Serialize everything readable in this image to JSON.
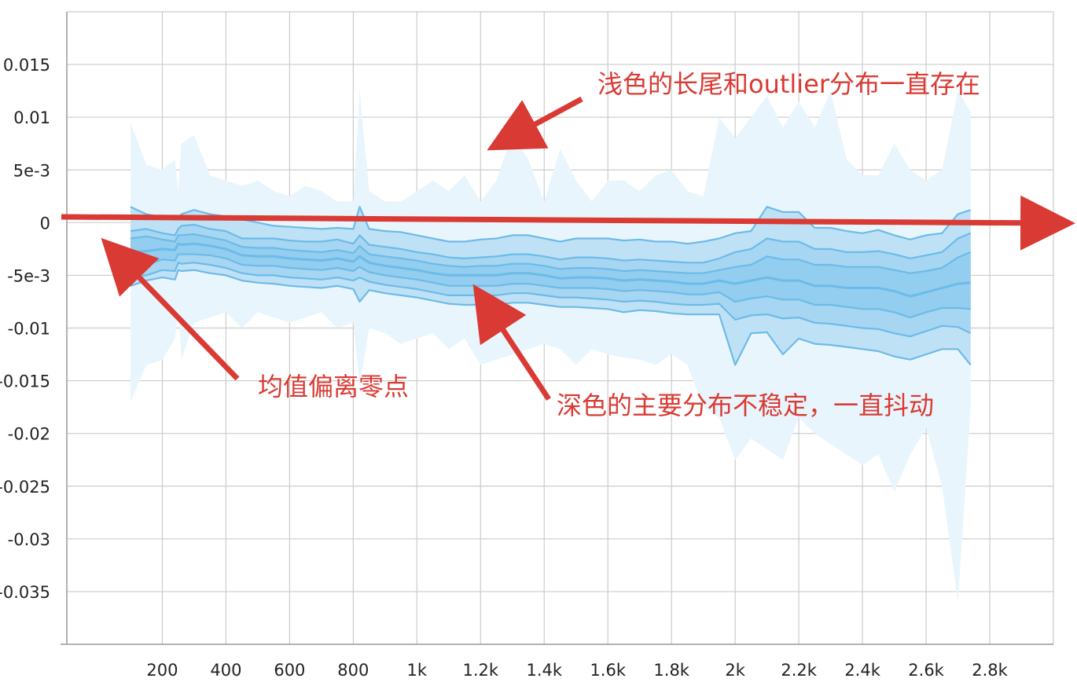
{
  "chart_data": {
    "type": "area",
    "xlim": [
      -100,
      3000
    ],
    "ylim": [
      -0.04,
      0.02
    ],
    "x_ticks": [
      {
        "value": 200,
        "label": "200"
      },
      {
        "value": 400,
        "label": "400"
      },
      {
        "value": 600,
        "label": "600"
      },
      {
        "value": 800,
        "label": "800"
      },
      {
        "value": 1000,
        "label": "1k"
      },
      {
        "value": 1200,
        "label": "1.2k"
      },
      {
        "value": 1400,
        "label": "1.4k"
      },
      {
        "value": 1600,
        "label": "1.6k"
      },
      {
        "value": 1800,
        "label": "1.8k"
      },
      {
        "value": 2000,
        "label": "2k"
      },
      {
        "value": 2200,
        "label": "2.2k"
      },
      {
        "value": 2400,
        "label": "2.4k"
      },
      {
        "value": 2600,
        "label": "2.6k"
      },
      {
        "value": 2800,
        "label": "2.8k"
      }
    ],
    "y_ticks": [
      {
        "value": 0.015,
        "label": "0.015"
      },
      {
        "value": 0.01,
        "label": "0.01"
      },
      {
        "value": 0.005,
        "label": "5e-3"
      },
      {
        "value": 0,
        "label": "0"
      },
      {
        "value": -0.005,
        "label": "-5e-3"
      },
      {
        "value": -0.01,
        "label": "-0.01"
      },
      {
        "value": -0.015,
        "label": "-0.015"
      },
      {
        "value": -0.02,
        "label": "-0.02"
      },
      {
        "value": -0.025,
        "label": "-0.025"
      },
      {
        "value": -0.03,
        "label": "-0.03"
      },
      {
        "value": -0.035,
        "label": "-0.035"
      }
    ],
    "grid": true,
    "x": [
      100,
      150,
      200,
      240,
      250,
      260,
      300,
      350,
      400,
      450,
      500,
      550,
      600,
      650,
      700,
      750,
      800,
      820,
      850,
      900,
      950,
      1000,
      1050,
      1100,
      1150,
      1200,
      1250,
      1300,
      1350,
      1400,
      1450,
      1500,
      1550,
      1600,
      1650,
      1700,
      1750,
      1800,
      1850,
      1900,
      1950,
      2000,
      2050,
      2100,
      2150,
      2200,
      2250,
      2300,
      2350,
      2400,
      2450,
      2500,
      2550,
      2600,
      2650,
      2700,
      2740
    ],
    "percentile_bands": {
      "p100": [
        0.0095,
        0.0055,
        0.005,
        0.006,
        0.003,
        0.0075,
        0.0083,
        0.0045,
        0.004,
        0.0035,
        0.004,
        0.003,
        0.0025,
        0.0035,
        0.003,
        0.002,
        0.002,
        0.0125,
        0.003,
        0.002,
        0.002,
        0.003,
        0.004,
        0.003,
        0.0045,
        0.002,
        0.004,
        0.0085,
        0.006,
        0.002,
        0.007,
        0.004,
        0.002,
        0.004,
        0.004,
        0.003,
        0.0045,
        0.005,
        0.003,
        0.0025,
        0.01,
        0.008,
        0.01,
        0.012,
        0.009,
        0.0115,
        0.009,
        0.0125,
        0.006,
        0.0045,
        0.0045,
        0.0075,
        0.005,
        0.004,
        0.005,
        0.0125,
        0.0105
      ],
      "p93": [
        0.0015,
        0.0008,
        0.0005,
        0.0003,
        0.0003,
        0.0008,
        0.0012,
        0.0008,
        0.0006,
        0.0003,
        0.0,
        -0.0003,
        -0.0004,
        -0.0005,
        -0.0006,
        -0.0005,
        -0.0006,
        0.0015,
        -0.0006,
        -0.0008,
        -0.0009,
        -0.0012,
        -0.0015,
        -0.0018,
        -0.0018,
        -0.0016,
        -0.0015,
        -0.0012,
        -0.0012,
        -0.0015,
        -0.0018,
        -0.0015,
        -0.0015,
        -0.0015,
        -0.0017,
        -0.0016,
        -0.0018,
        -0.0018,
        -0.002,
        -0.0018,
        -0.0015,
        -0.001,
        -0.0008,
        0.0015,
        0.001,
        0.001,
        -0.0005,
        -0.0005,
        -0.0008,
        -0.001,
        -0.0007,
        -0.0012,
        -0.0016,
        -0.0012,
        -0.001,
        0.0008,
        0.0012
      ],
      "p84": [
        -0.0008,
        -0.0006,
        -0.001,
        -0.0012,
        -0.0006,
        -0.0003,
        -0.0002,
        -0.0006,
        -0.0008,
        -0.0015,
        -0.0015,
        -0.0015,
        -0.0017,
        -0.0018,
        -0.0018,
        -0.0016,
        -0.002,
        -0.0012,
        -0.0021,
        -0.0023,
        -0.0025,
        -0.0028,
        -0.003,
        -0.0033,
        -0.0034,
        -0.0033,
        -0.0032,
        -0.003,
        -0.003,
        -0.0032,
        -0.0035,
        -0.0033,
        -0.0033,
        -0.0034,
        -0.0036,
        -0.0035,
        -0.0036,
        -0.0037,
        -0.0038,
        -0.0038,
        -0.0034,
        -0.0028,
        -0.0025,
        -0.0015,
        -0.0018,
        -0.0018,
        -0.0025,
        -0.0025,
        -0.0028,
        -0.0028,
        -0.0027,
        -0.003,
        -0.0034,
        -0.0031,
        -0.0028,
        -0.0015,
        -0.001
      ],
      "p69": [
        -0.0015,
        -0.0013,
        -0.0016,
        -0.0018,
        -0.0012,
        -0.0012,
        -0.0011,
        -0.0014,
        -0.0017,
        -0.0023,
        -0.0024,
        -0.0024,
        -0.0026,
        -0.0027,
        -0.0028,
        -0.0026,
        -0.0029,
        -0.0022,
        -0.003,
        -0.0032,
        -0.0034,
        -0.0036,
        -0.0039,
        -0.0041,
        -0.0042,
        -0.0041,
        -0.0041,
        -0.0039,
        -0.0039,
        -0.0041,
        -0.0044,
        -0.0043,
        -0.0043,
        -0.0044,
        -0.0046,
        -0.0045,
        -0.0046,
        -0.0047,
        -0.0048,
        -0.0048,
        -0.0045,
        -0.0042,
        -0.004,
        -0.0032,
        -0.0035,
        -0.0035,
        -0.004,
        -0.004,
        -0.0042,
        -0.0042,
        -0.0042,
        -0.0045,
        -0.0048,
        -0.0046,
        -0.0043,
        -0.0033,
        -0.0028
      ],
      "p50": [
        -0.0028,
        -0.0027,
        -0.0025,
        -0.0026,
        -0.002,
        -0.0021,
        -0.002,
        -0.0022,
        -0.0025,
        -0.0031,
        -0.0032,
        -0.0032,
        -0.0034,
        -0.0035,
        -0.0036,
        -0.0034,
        -0.0037,
        -0.0032,
        -0.0038,
        -0.0041,
        -0.0043,
        -0.0045,
        -0.0048,
        -0.005,
        -0.005,
        -0.005,
        -0.005,
        -0.0048,
        -0.0048,
        -0.005,
        -0.0053,
        -0.0052,
        -0.0052,
        -0.0053,
        -0.0055,
        -0.0054,
        -0.0055,
        -0.0056,
        -0.0058,
        -0.0058,
        -0.0055,
        -0.0058,
        -0.0055,
        -0.0052,
        -0.0055,
        -0.0055,
        -0.006,
        -0.006,
        -0.0062,
        -0.0062,
        -0.0062,
        -0.0065,
        -0.007,
        -0.0066,
        -0.0062,
        -0.0058,
        -0.0057
      ],
      "p31": [
        -0.0042,
        -0.004,
        -0.0035,
        -0.0036,
        -0.003,
        -0.003,
        -0.003,
        -0.0031,
        -0.0034,
        -0.004,
        -0.0041,
        -0.0041,
        -0.0043,
        -0.0044,
        -0.0045,
        -0.0043,
        -0.0046,
        -0.0042,
        -0.0047,
        -0.005,
        -0.0052,
        -0.0054,
        -0.0057,
        -0.006,
        -0.006,
        -0.006,
        -0.006,
        -0.0058,
        -0.0058,
        -0.006,
        -0.0062,
        -0.0062,
        -0.0062,
        -0.0063,
        -0.0065,
        -0.0064,
        -0.0065,
        -0.0066,
        -0.0068,
        -0.0068,
        -0.0066,
        -0.0075,
        -0.0072,
        -0.007,
        -0.0073,
        -0.0073,
        -0.0078,
        -0.0078,
        -0.008,
        -0.0082,
        -0.0082,
        -0.0085,
        -0.009,
        -0.0085,
        -0.0081,
        -0.0081,
        -0.0082
      ],
      "p16": [
        -0.0052,
        -0.005,
        -0.0045,
        -0.0046,
        -0.0038,
        -0.0039,
        -0.0038,
        -0.004,
        -0.0043,
        -0.0048,
        -0.005,
        -0.005,
        -0.0052,
        -0.0053,
        -0.0054,
        -0.0052,
        -0.0055,
        -0.0052,
        -0.0056,
        -0.0059,
        -0.0061,
        -0.0063,
        -0.0066,
        -0.0069,
        -0.0069,
        -0.0069,
        -0.0069,
        -0.0067,
        -0.0067,
        -0.0069,
        -0.0071,
        -0.0071,
        -0.0072,
        -0.0073,
        -0.0075,
        -0.0074,
        -0.0075,
        -0.0077,
        -0.0078,
        -0.0078,
        -0.0077,
        -0.0092,
        -0.0088,
        -0.0087,
        -0.0091,
        -0.009,
        -0.0095,
        -0.0096,
        -0.0098,
        -0.01,
        -0.0101,
        -0.0105,
        -0.0108,
        -0.0103,
        -0.0098,
        -0.0099,
        -0.0105
      ],
      "p7": [
        -0.006,
        -0.0055,
        -0.0052,
        -0.0054,
        -0.0045,
        -0.0046,
        -0.0045,
        -0.0048,
        -0.005,
        -0.0055,
        -0.0057,
        -0.0058,
        -0.006,
        -0.0061,
        -0.0062,
        -0.006,
        -0.0063,
        -0.0075,
        -0.0064,
        -0.0067,
        -0.0069,
        -0.0071,
        -0.0074,
        -0.0077,
        -0.0078,
        -0.0078,
        -0.0078,
        -0.0076,
        -0.0076,
        -0.0078,
        -0.008,
        -0.008,
        -0.0081,
        -0.0082,
        -0.0085,
        -0.0083,
        -0.0084,
        -0.0086,
        -0.0087,
        -0.0087,
        -0.0087,
        -0.0135,
        -0.0105,
        -0.0104,
        -0.0125,
        -0.011,
        -0.0115,
        -0.0116,
        -0.0118,
        -0.012,
        -0.0122,
        -0.0127,
        -0.013,
        -0.0125,
        -0.012,
        -0.012,
        -0.0135
      ],
      "p0": [
        -0.017,
        -0.0135,
        -0.013,
        -0.011,
        -0.008,
        -0.013,
        -0.0095,
        -0.009,
        -0.0085,
        -0.01,
        -0.0085,
        -0.009,
        -0.0095,
        -0.009,
        -0.0085,
        -0.01,
        -0.0095,
        -0.0155,
        -0.01,
        -0.0105,
        -0.0115,
        -0.011,
        -0.0105,
        -0.012,
        -0.011,
        -0.0135,
        -0.013,
        -0.0125,
        -0.012,
        -0.0115,
        -0.012,
        -0.0135,
        -0.012,
        -0.0125,
        -0.0128,
        -0.013,
        -0.0135,
        -0.0125,
        -0.0135,
        -0.0175,
        -0.0185,
        -0.0225,
        -0.0205,
        -0.0215,
        -0.0225,
        -0.0185,
        -0.02,
        -0.021,
        -0.022,
        -0.023,
        -0.022,
        -0.0255,
        -0.022,
        -0.0195,
        -0.025,
        -0.036,
        -0.0175
      ]
    },
    "annotations": [
      {
        "text": "浅色的长尾和outlier分布一直存在"
      },
      {
        "text": "均值偏离零点"
      },
      {
        "text": "深色的主要分布不稳定，一直抖动"
      }
    ]
  },
  "colors": {
    "band_outer": "#e9f5fc",
    "band_1": "#bfe1f6",
    "band_2": "#a7d6f2",
    "band_3": "#93cdef",
    "band_4": "#81c5ec",
    "line": "#6cbbe8",
    "annotation_red": "#d93a33",
    "grid": "#cccccc"
  }
}
